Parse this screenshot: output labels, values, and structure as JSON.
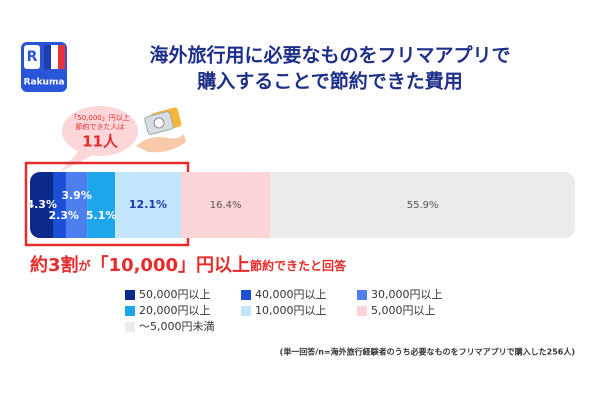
{
  "chart_data": {
    "type": "stacked_bar",
    "logo": {
      "mark": "R",
      "name": "Rakuma"
    },
    "title": [
      "海外旅行用に必要なものをフリマアプリで",
      "購入することで節約できた費用"
    ],
    "bubble": {
      "line1": "「50,000」円以上",
      "line2": "節約できた人は",
      "count": "11人"
    },
    "headline": {
      "part1": "約3割",
      "part2": "が",
      "part3": "「10,000」円以上",
      "part4": "節約できたと回答"
    },
    "series": [
      {
        "name": "50,000円以上",
        "color": "#0b2b8c",
        "values": [
          4.3
        ],
        "value_labels": [
          "4.3%"
        ]
      },
      {
        "name": "40,000円以上",
        "color": "#1d4fd6",
        "values": [
          2.3
        ],
        "value_labels": [
          "2.3%"
        ]
      },
      {
        "name": "30,000円以上",
        "color": "#4d7ff0",
        "values": [
          3.9
        ],
        "value_labels": [
          "3.9%"
        ]
      },
      {
        "name": "20,000円以上",
        "color": "#1ea6ea",
        "values": [
          5.1
        ],
        "value_labels": [
          "5.1%"
        ]
      },
      {
        "name": "10,000円以上",
        "color": "#c2e5fb",
        "values": [
          12.1
        ],
        "value_labels": [
          "12.1%"
        ]
      },
      {
        "name": "5,000円以上",
        "color": "#fbd4d7",
        "values": [
          16.4
        ],
        "value_labels": [
          "16.4%"
        ]
      },
      {
        "name": "〜5,000円未満",
        "color": "#ebebeb",
        "values": [
          55.9
        ],
        "value_labels": [
          "55.9%"
        ]
      }
    ],
    "footnote": "(単一回答/n=海外旅行経験者のうち必要なものをフリマアプリで購入した256人)"
  }
}
